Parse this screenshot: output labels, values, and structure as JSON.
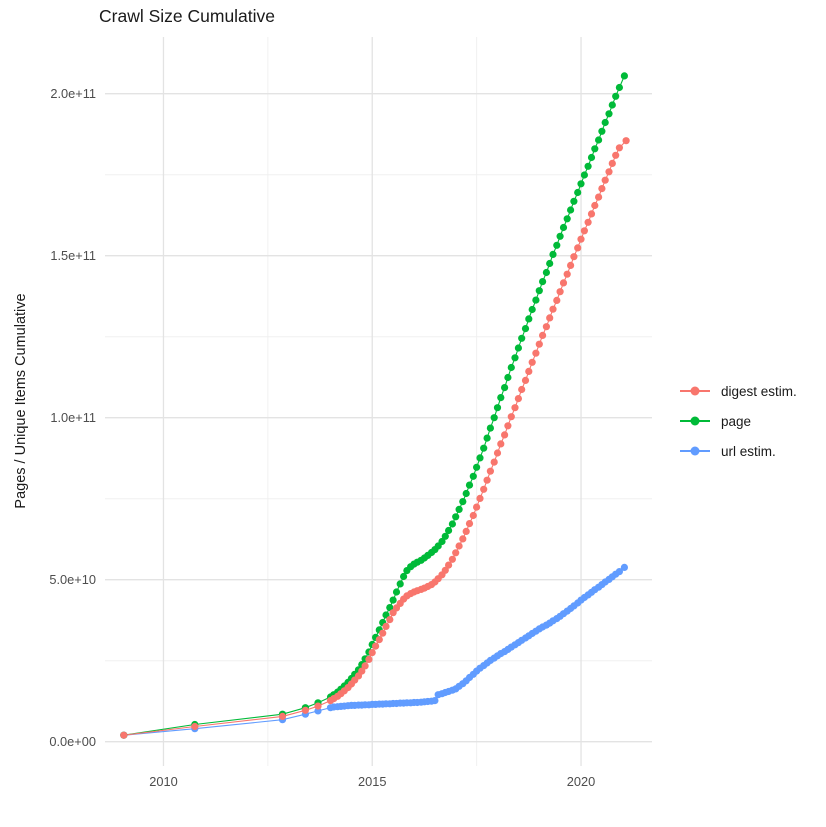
{
  "title": "Crawl Size Cumulative",
  "chart_data": {
    "type": "scatter",
    "title": "Crawl Size Cumulative",
    "xlabel": "",
    "ylabel": "Pages / Unique Items Cumulative",
    "grid": true,
    "legend_position": "right",
    "xlim": [
      2008.6,
      2021.7
    ],
    "ylim_pages": [
      -7500000000,
      217500000000
    ],
    "x_ticks": {
      "values": [
        2010,
        2015,
        2020
      ],
      "labels": [
        "2010",
        "2015",
        "2020"
      ],
      "minor": [
        2012.5,
        2017.5
      ]
    },
    "y_ticks": {
      "values_e10": [
        0,
        5,
        10,
        15,
        20
      ],
      "labels": [
        "0.0e+00",
        "5.0e+10",
        "1.0e+11",
        "1.5e+11",
        "2.0e+11"
      ],
      "minor_e10": [
        2.5,
        7.5,
        12.5,
        17.5
      ]
    },
    "value_scale": 10000000000,
    "series": [
      {
        "name": "digest estim.",
        "color": "#F8766D",
        "points": [
          [
            2009.05,
            0.2
          ],
          [
            2010.75,
            0.47
          ],
          [
            2012.85,
            0.78
          ],
          [
            2013.4,
            0.97
          ],
          [
            2013.7,
            1.1
          ],
          [
            2014.0,
            1.27
          ],
          [
            2014.08,
            1.33
          ],
          [
            2014.17,
            1.4
          ],
          [
            2014.25,
            1.48
          ],
          [
            2014.33,
            1.57
          ],
          [
            2014.42,
            1.67
          ],
          [
            2014.5,
            1.78
          ],
          [
            2014.58,
            1.9
          ],
          [
            2014.67,
            2.03
          ],
          [
            2014.75,
            2.18
          ],
          [
            2014.83,
            2.34
          ],
          [
            2014.92,
            2.54
          ],
          [
            2015.0,
            2.75
          ],
          [
            2015.08,
            2.95
          ],
          [
            2015.17,
            3.15
          ],
          [
            2015.25,
            3.35
          ],
          [
            2015.33,
            3.56
          ],
          [
            2015.42,
            3.77
          ],
          [
            2015.5,
            3.98
          ],
          [
            2015.58,
            4.13
          ],
          [
            2015.67,
            4.27
          ],
          [
            2015.75,
            4.4
          ],
          [
            2015.83,
            4.5
          ],
          [
            2015.92,
            4.57
          ],
          [
            2016.0,
            4.62
          ],
          [
            2016.08,
            4.66
          ],
          [
            2016.17,
            4.7
          ],
          [
            2016.25,
            4.74
          ],
          [
            2016.33,
            4.79
          ],
          [
            2016.42,
            4.85
          ],
          [
            2016.5,
            4.93
          ],
          [
            2016.58,
            5.03
          ],
          [
            2016.67,
            5.15
          ],
          [
            2016.75,
            5.29
          ],
          [
            2016.83,
            5.45
          ],
          [
            2016.92,
            5.63
          ],
          [
            2017.0,
            5.83
          ],
          [
            2017.08,
            6.04
          ],
          [
            2017.17,
            6.26
          ],
          [
            2017.25,
            6.49
          ],
          [
            2017.33,
            6.73
          ],
          [
            2017.42,
            6.98
          ],
          [
            2017.5,
            7.24
          ],
          [
            2017.58,
            7.51
          ],
          [
            2017.67,
            7.79
          ],
          [
            2017.75,
            8.07
          ],
          [
            2017.83,
            8.35
          ],
          [
            2017.92,
            8.63
          ],
          [
            2018.0,
            8.91
          ],
          [
            2018.08,
            9.19
          ],
          [
            2018.17,
            9.47
          ],
          [
            2018.25,
            9.75
          ],
          [
            2018.33,
            10.03
          ],
          [
            2018.42,
            10.31
          ],
          [
            2018.5,
            10.59
          ],
          [
            2018.58,
            10.87
          ],
          [
            2018.67,
            11.15
          ],
          [
            2018.75,
            11.43
          ],
          [
            2018.83,
            11.71
          ],
          [
            2018.92,
            11.99
          ],
          [
            2019.0,
            12.27
          ],
          [
            2019.08,
            12.54
          ],
          [
            2019.17,
            12.81
          ],
          [
            2019.25,
            13.08
          ],
          [
            2019.33,
            13.35
          ],
          [
            2019.42,
            13.62
          ],
          [
            2019.5,
            13.89
          ],
          [
            2019.58,
            14.16
          ],
          [
            2019.67,
            14.43
          ],
          [
            2019.75,
            14.7
          ],
          [
            2019.83,
            14.97
          ],
          [
            2019.92,
            15.24
          ],
          [
            2020.0,
            15.51
          ],
          [
            2020.08,
            15.77
          ],
          [
            2020.17,
            16.03
          ],
          [
            2020.25,
            16.29
          ],
          [
            2020.33,
            16.55
          ],
          [
            2020.42,
            16.81
          ],
          [
            2020.5,
            17.07
          ],
          [
            2020.58,
            17.33
          ],
          [
            2020.67,
            17.59
          ],
          [
            2020.75,
            17.85
          ],
          [
            2020.83,
            18.1
          ],
          [
            2020.92,
            18.33
          ],
          [
            2021.08,
            18.55
          ]
        ]
      },
      {
        "name": "page",
        "color": "#00BA38",
        "points": [
          [
            2009.05,
            0.2
          ],
          [
            2010.75,
            0.53
          ],
          [
            2012.85,
            0.85
          ],
          [
            2013.4,
            1.05
          ],
          [
            2013.7,
            1.2
          ],
          [
            2014.0,
            1.38
          ],
          [
            2014.08,
            1.45
          ],
          [
            2014.17,
            1.53
          ],
          [
            2014.25,
            1.62
          ],
          [
            2014.33,
            1.72
          ],
          [
            2014.42,
            1.83
          ],
          [
            2014.5,
            1.95
          ],
          [
            2014.58,
            2.08
          ],
          [
            2014.67,
            2.22
          ],
          [
            2014.75,
            2.38
          ],
          [
            2014.83,
            2.56
          ],
          [
            2014.92,
            2.77
          ],
          [
            2015.0,
            3.0
          ],
          [
            2015.08,
            3.22
          ],
          [
            2015.17,
            3.45
          ],
          [
            2015.25,
            3.68
          ],
          [
            2015.33,
            3.91
          ],
          [
            2015.42,
            4.14
          ],
          [
            2015.5,
            4.37
          ],
          [
            2015.58,
            4.62
          ],
          [
            2015.67,
            4.87
          ],
          [
            2015.75,
            5.1
          ],
          [
            2015.83,
            5.28
          ],
          [
            2015.92,
            5.4
          ],
          [
            2016.0,
            5.48
          ],
          [
            2016.08,
            5.54
          ],
          [
            2016.17,
            5.6
          ],
          [
            2016.25,
            5.67
          ],
          [
            2016.33,
            5.75
          ],
          [
            2016.42,
            5.84
          ],
          [
            2016.5,
            5.93
          ],
          [
            2016.58,
            6.04
          ],
          [
            2016.67,
            6.18
          ],
          [
            2016.75,
            6.34
          ],
          [
            2016.83,
            6.52
          ],
          [
            2016.92,
            6.72
          ],
          [
            2017.0,
            6.94
          ],
          [
            2017.08,
            7.17
          ],
          [
            2017.17,
            7.41
          ],
          [
            2017.25,
            7.66
          ],
          [
            2017.33,
            7.92
          ],
          [
            2017.42,
            8.19
          ],
          [
            2017.5,
            8.47
          ],
          [
            2017.58,
            8.76
          ],
          [
            2017.67,
            9.06
          ],
          [
            2017.75,
            9.37
          ],
          [
            2017.83,
            9.68
          ],
          [
            2017.92,
            10.0
          ],
          [
            2018.0,
            10.31
          ],
          [
            2018.08,
            10.62
          ],
          [
            2018.17,
            10.93
          ],
          [
            2018.25,
            11.24
          ],
          [
            2018.33,
            11.55
          ],
          [
            2018.42,
            11.85
          ],
          [
            2018.5,
            12.15
          ],
          [
            2018.58,
            12.45
          ],
          [
            2018.67,
            12.75
          ],
          [
            2018.75,
            13.05
          ],
          [
            2018.83,
            13.34
          ],
          [
            2018.92,
            13.63
          ],
          [
            2019.0,
            13.92
          ],
          [
            2019.08,
            14.2
          ],
          [
            2019.17,
            14.48
          ],
          [
            2019.25,
            14.76
          ],
          [
            2019.33,
            15.04
          ],
          [
            2019.42,
            15.32
          ],
          [
            2019.5,
            15.6
          ],
          [
            2019.58,
            15.87
          ],
          [
            2019.67,
            16.14
          ],
          [
            2019.75,
            16.41
          ],
          [
            2019.83,
            16.68
          ],
          [
            2019.92,
            16.95
          ],
          [
            2020.0,
            17.22
          ],
          [
            2020.08,
            17.49
          ],
          [
            2020.17,
            17.76
          ],
          [
            2020.25,
            18.03
          ],
          [
            2020.33,
            18.3
          ],
          [
            2020.42,
            18.57
          ],
          [
            2020.5,
            18.84
          ],
          [
            2020.58,
            19.11
          ],
          [
            2020.67,
            19.38
          ],
          [
            2020.75,
            19.65
          ],
          [
            2020.83,
            19.92
          ],
          [
            2020.92,
            20.19
          ],
          [
            2021.04,
            20.55
          ]
        ]
      },
      {
        "name": "url estim.",
        "color": "#619CFF",
        "points": [
          [
            2009.05,
            0.2
          ],
          [
            2010.75,
            0.4
          ],
          [
            2012.85,
            0.68
          ],
          [
            2013.4,
            0.85
          ],
          [
            2013.7,
            0.95
          ],
          [
            2014.0,
            1.05
          ],
          [
            2014.08,
            1.07
          ],
          [
            2014.17,
            1.08
          ],
          [
            2014.25,
            1.09
          ],
          [
            2014.33,
            1.1
          ],
          [
            2014.42,
            1.11
          ],
          [
            2014.5,
            1.12
          ],
          [
            2014.58,
            1.12
          ],
          [
            2014.67,
            1.13
          ],
          [
            2014.75,
            1.13
          ],
          [
            2014.83,
            1.14
          ],
          [
            2014.92,
            1.14
          ],
          [
            2015.0,
            1.15
          ],
          [
            2015.08,
            1.15
          ],
          [
            2015.17,
            1.16
          ],
          [
            2015.25,
            1.16
          ],
          [
            2015.33,
            1.17
          ],
          [
            2015.42,
            1.17
          ],
          [
            2015.5,
            1.18
          ],
          [
            2015.58,
            1.18
          ],
          [
            2015.67,
            1.19
          ],
          [
            2015.75,
            1.19
          ],
          [
            2015.83,
            1.2
          ],
          [
            2015.92,
            1.2
          ],
          [
            2016.0,
            1.21
          ],
          [
            2016.08,
            1.21
          ],
          [
            2016.17,
            1.22
          ],
          [
            2016.25,
            1.23
          ],
          [
            2016.33,
            1.24
          ],
          [
            2016.42,
            1.25
          ],
          [
            2016.5,
            1.27
          ],
          [
            2016.58,
            1.45
          ],
          [
            2016.67,
            1.48
          ],
          [
            2016.75,
            1.52
          ],
          [
            2016.83,
            1.55
          ],
          [
            2016.92,
            1.59
          ],
          [
            2017.0,
            1.63
          ],
          [
            2017.08,
            1.71
          ],
          [
            2017.17,
            1.79
          ],
          [
            2017.25,
            1.88
          ],
          [
            2017.33,
            1.98
          ],
          [
            2017.42,
            2.08
          ],
          [
            2017.5,
            2.18
          ],
          [
            2017.58,
            2.27
          ],
          [
            2017.67,
            2.35
          ],
          [
            2017.75,
            2.43
          ],
          [
            2017.83,
            2.51
          ],
          [
            2017.92,
            2.58
          ],
          [
            2018.0,
            2.65
          ],
          [
            2018.08,
            2.72
          ],
          [
            2018.17,
            2.78
          ],
          [
            2018.25,
            2.85
          ],
          [
            2018.33,
            2.92
          ],
          [
            2018.42,
            2.99
          ],
          [
            2018.5,
            3.06
          ],
          [
            2018.58,
            3.13
          ],
          [
            2018.67,
            3.2
          ],
          [
            2018.75,
            3.27
          ],
          [
            2018.83,
            3.34
          ],
          [
            2018.92,
            3.41
          ],
          [
            2019.0,
            3.48
          ],
          [
            2019.08,
            3.54
          ],
          [
            2019.17,
            3.6
          ],
          [
            2019.25,
            3.66
          ],
          [
            2019.33,
            3.73
          ],
          [
            2019.42,
            3.8
          ],
          [
            2019.5,
            3.87
          ],
          [
            2019.58,
            3.95
          ],
          [
            2019.67,
            4.03
          ],
          [
            2019.75,
            4.11
          ],
          [
            2019.83,
            4.19
          ],
          [
            2019.92,
            4.28
          ],
          [
            2020.0,
            4.37
          ],
          [
            2020.08,
            4.45
          ],
          [
            2020.17,
            4.53
          ],
          [
            2020.25,
            4.61
          ],
          [
            2020.33,
            4.69
          ],
          [
            2020.42,
            4.77
          ],
          [
            2020.5,
            4.85
          ],
          [
            2020.58,
            4.93
          ],
          [
            2020.67,
            5.01
          ],
          [
            2020.75,
            5.09
          ],
          [
            2020.83,
            5.17
          ],
          [
            2020.92,
            5.25
          ],
          [
            2021.04,
            5.38
          ]
        ]
      }
    ],
    "colors": {
      "grid_major": "#E3E3E3",
      "grid_minor": "#F0F0F0",
      "axis_text": "#4d4d4d",
      "title_text": "#1a1a1a"
    }
  },
  "legend": {
    "items": [
      {
        "label": "digest estim.",
        "color": "#F8766D"
      },
      {
        "label": "page",
        "color": "#00BA38"
      },
      {
        "label": "url estim.",
        "color": "#619CFF"
      }
    ]
  }
}
